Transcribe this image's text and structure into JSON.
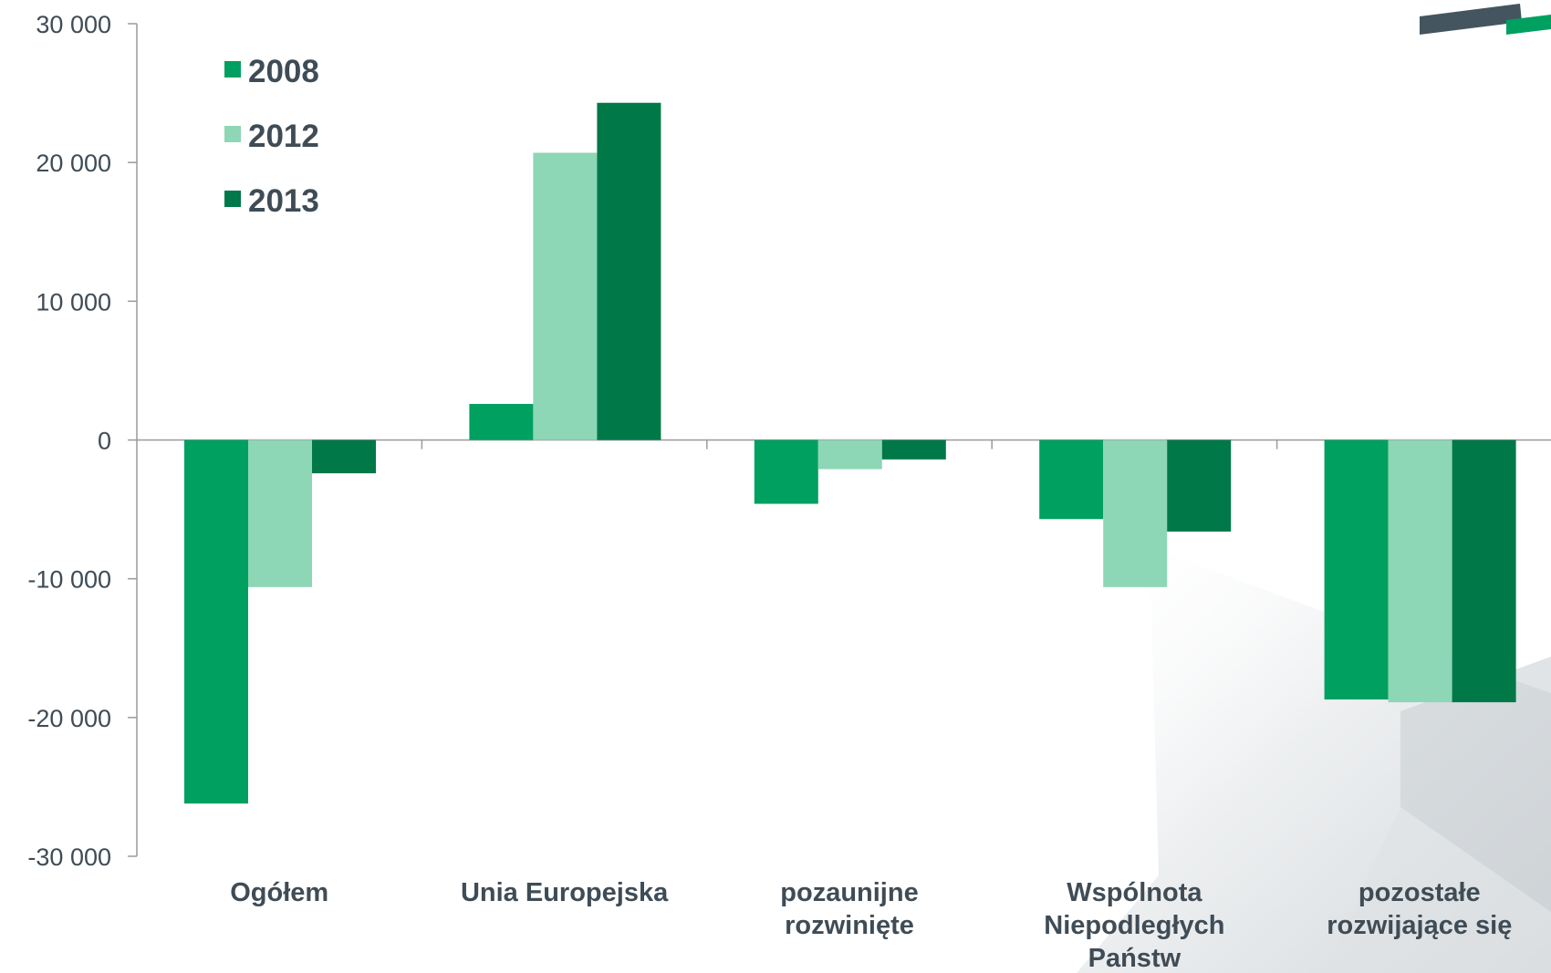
{
  "chart_data": {
    "type": "bar",
    "categories": [
      [
        "Ogółem"
      ],
      [
        "Unia Europejska"
      ],
      [
        "pozaunijne",
        "rozwinięte"
      ],
      [
        "Wspólnota",
        "Niepodległych",
        "Państw"
      ],
      [
        "pozostałe",
        "rozwijające się"
      ]
    ],
    "series": [
      {
        "name": "2008",
        "color": "#00a060",
        "values": [
          -26200,
          2600,
          -4600,
          -5700,
          -18700
        ]
      },
      {
        "name": "2012",
        "color": "#8dd6b6",
        "values": [
          -10600,
          20700,
          -2100,
          -10600,
          -18900
        ]
      },
      {
        "name": "2013",
        "color": "#007848",
        "values": [
          -2400,
          24300,
          -1400,
          -6600,
          -18900
        ]
      }
    ],
    "yticks": [
      "30 000",
      "20 000",
      "10 000",
      "0",
      "-10 000",
      "-20 000",
      "-30 000"
    ],
    "ylim": [
      -30000,
      30000
    ],
    "grid": false,
    "legend_position": "top-left",
    "decor_colors": {
      "dark": "#44555f",
      "green": "#00a060",
      "gray": "#d7dbde"
    }
  }
}
